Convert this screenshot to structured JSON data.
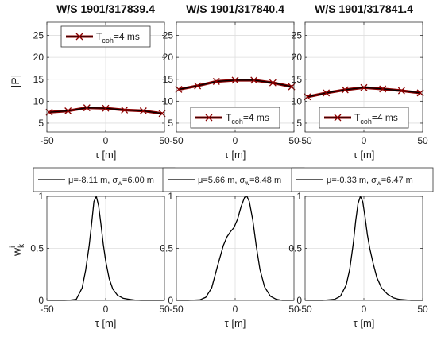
{
  "figure": {
    "top_xlabel": "τ [m]",
    "bottom_xlabel": "τ [m]",
    "top_ylabel": "|P|",
    "bottom_ylabel": "w",
    "bottom_ylabel_sub": "k",
    "bottom_ylabel_sup": "i"
  },
  "chart_data": [
    {
      "type": "line",
      "title": "W/S 1901/317839.4",
      "xlabel": "τ [m]",
      "ylabel": "|P|",
      "xlim": [
        -50,
        50
      ],
      "ylim": [
        3,
        28
      ],
      "xticks": [
        -50,
        0,
        50
      ],
      "yticks": [
        5,
        10,
        15,
        20,
        25
      ],
      "grid": true,
      "legend": "top",
      "series": [
        {
          "name": "T",
          "name_sub": "coh",
          "name_suffix": "=4 ms",
          "color": "#8b0000",
          "marker": "x",
          "line_color": "#000000",
          "x": [
            -48,
            -32,
            -16,
            0,
            16,
            32,
            48
          ],
          "y": [
            7.5,
            7.8,
            8.5,
            8.4,
            8.0,
            7.8,
            7.2
          ]
        }
      ]
    },
    {
      "type": "line",
      "title": "W/S 1901/317840.4",
      "xlabel": "τ [m]",
      "ylabel": "",
      "xlim": [
        -50,
        50
      ],
      "ylim": [
        3,
        28
      ],
      "xticks": [
        -50,
        0,
        50
      ],
      "yticks": [
        5,
        10,
        15,
        20,
        25
      ],
      "grid": true,
      "legend": "bottom",
      "series": [
        {
          "name": "T",
          "name_sub": "coh",
          "name_suffix": "=4 ms",
          "color": "#8b0000",
          "marker": "x",
          "line_color": "#000000",
          "x": [
            -48,
            -32,
            -16,
            0,
            16,
            32,
            48
          ],
          "y": [
            12.7,
            13.5,
            14.5,
            14.8,
            14.8,
            14.2,
            13.3
          ]
        }
      ]
    },
    {
      "type": "line",
      "title": "W/S 1901/317841.4",
      "xlabel": "τ [m]",
      "ylabel": "",
      "xlim": [
        -50,
        50
      ],
      "ylim": [
        3,
        28
      ],
      "xticks": [
        -50,
        0,
        50
      ],
      "yticks": [
        5,
        10,
        15,
        20,
        25
      ],
      "grid": true,
      "legend": "bottom",
      "series": [
        {
          "name": "T",
          "name_sub": "coh",
          "name_suffix": "=4 ms",
          "color": "#8b0000",
          "marker": "x",
          "line_color": "#000000",
          "x": [
            -48,
            -32,
            -16,
            0,
            16,
            32,
            48
          ],
          "y": [
            11.0,
            11.9,
            12.6,
            13.1,
            12.8,
            12.4,
            11.9
          ]
        }
      ]
    },
    {
      "type": "line",
      "title": "",
      "xlabel": "τ [m]",
      "ylabel": "w",
      "xlim": [
        -50,
        50
      ],
      "ylim": [
        0,
        1
      ],
      "xticks": [
        -50,
        0,
        50
      ],
      "yticks": [
        0,
        0.5,
        1
      ],
      "ytick_labels": [
        "0",
        "0.5",
        "1"
      ],
      "grid": true,
      "legend": "outside-top",
      "legend_parts": [
        "μ=-8.11 m, σ",
        "w",
        "=6.00 m"
      ],
      "series": [
        {
          "color": "#000000",
          "x": [
            -50,
            -45,
            -40,
            -35,
            -30,
            -25,
            -20,
            -17,
            -14,
            -12,
            -10,
            -8,
            -6,
            -4,
            -2,
            0,
            3,
            6,
            10,
            15,
            20,
            25,
            30,
            40,
            50
          ],
          "y": [
            0,
            0,
            0,
            0,
            0.002,
            0.01,
            0.12,
            0.29,
            0.53,
            0.73,
            0.95,
            1.0,
            0.91,
            0.73,
            0.54,
            0.38,
            0.21,
            0.11,
            0.05,
            0.02,
            0.01,
            0.003,
            0,
            0,
            0
          ]
        }
      ]
    },
    {
      "type": "line",
      "title": "",
      "xlabel": "τ [m]",
      "ylabel": "",
      "xlim": [
        -50,
        50
      ],
      "ylim": [
        0,
        1
      ],
      "xticks": [
        -50,
        0,
        50
      ],
      "yticks": [
        0,
        0.5,
        1
      ],
      "ytick_labels": [
        "0",
        "0.5",
        "1"
      ],
      "grid": true,
      "legend": "outside-top",
      "legend_parts": [
        "μ=5.66 m, σ",
        "w",
        "=8.48 m"
      ],
      "series": [
        {
          "color": "#000000",
          "x": [
            -50,
            -40,
            -30,
            -25,
            -20,
            -15,
            -10,
            -7,
            -4,
            -1,
            2,
            5,
            8,
            10,
            12,
            15,
            18,
            21,
            25,
            30,
            35,
            40,
            50
          ],
          "y": [
            0,
            0,
            0.005,
            0.03,
            0.12,
            0.33,
            0.53,
            0.61,
            0.66,
            0.7,
            0.78,
            0.9,
            0.99,
            1.0,
            0.95,
            0.77,
            0.52,
            0.3,
            0.13,
            0.04,
            0.01,
            0,
            0
          ]
        }
      ]
    },
    {
      "type": "line",
      "title": "",
      "xlabel": "τ [m]",
      "ylabel": "",
      "xlim": [
        -50,
        50
      ],
      "ylim": [
        0,
        1
      ],
      "xticks": [
        -50,
        0,
        50
      ],
      "yticks": [
        0,
        0.5,
        1
      ],
      "ytick_labels": [
        "0",
        "0.5",
        "1"
      ],
      "grid": true,
      "legend": "outside-top",
      "legend_parts": [
        "μ=-0.33 m, σ",
        "w",
        "=6.47 m"
      ],
      "series": [
        {
          "color": "#000000",
          "x": [
            -50,
            -35,
            -25,
            -20,
            -15,
            -12,
            -9,
            -7,
            -5,
            -3,
            -1,
            1,
            3,
            5,
            8,
            11,
            15,
            20,
            25,
            30,
            40,
            50
          ],
          "y": [
            0,
            0,
            0.01,
            0.04,
            0.15,
            0.3,
            0.55,
            0.76,
            0.93,
            1.0,
            0.95,
            0.8,
            0.63,
            0.5,
            0.35,
            0.22,
            0.12,
            0.06,
            0.025,
            0.01,
            0,
            0
          ]
        }
      ]
    }
  ]
}
